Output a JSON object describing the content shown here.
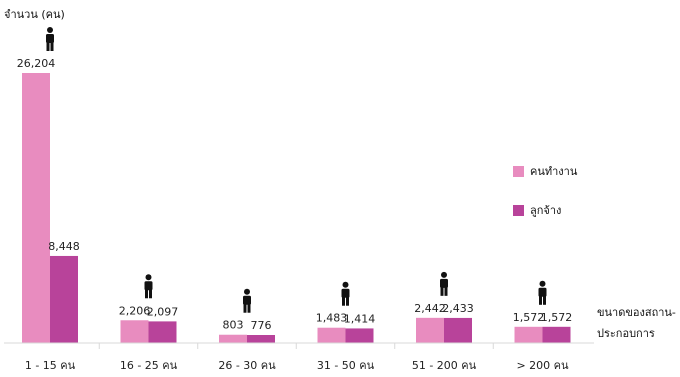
{
  "chart_data": {
    "type": "bar",
    "ylabel": "จำนวน (คน)",
    "xlabel": "ขนาดของสถาน-ประกอบการ",
    "xlabel_lines": [
      "ขนาดของสถาน-",
      "ประกอบการ"
    ],
    "categories": [
      "1 - 15 คน",
      "16 - 25 คน",
      "26 - 30 คน",
      "31 - 50 คน",
      "51 - 200 คน",
      "> 200 คน"
    ],
    "series": [
      {
        "name": "คนทำงาน",
        "color": "#e88cbf",
        "values": [
          26204,
          2206,
          803,
          1483,
          2442,
          1572
        ]
      },
      {
        "name": "ลูกจ้าง",
        "color": "#b8439a",
        "values": [
          8448,
          2097,
          776,
          1414,
          2433,
          1572
        ]
      }
    ],
    "value_labels": [
      [
        "26,204",
        "2,206",
        "803",
        "1,483",
        "2,442",
        "1,572"
      ],
      [
        "8,448",
        "2,097",
        "776",
        "1,414",
        "2,433",
        "1,572"
      ]
    ],
    "ylim": [
      0,
      26204
    ],
    "legend_position": "right",
    "grid": false,
    "icon": "person-icon"
  }
}
